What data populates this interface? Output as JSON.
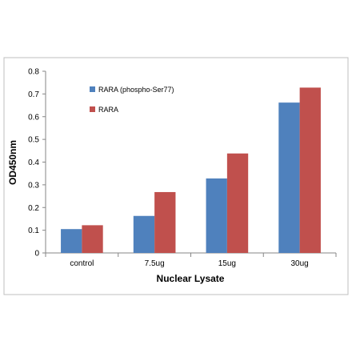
{
  "chart_data": {
    "type": "bar",
    "title": "",
    "xlabel": "Nuclear Lysate",
    "ylabel": "OD450nm",
    "ylim": [
      0,
      0.8
    ],
    "yticks": [
      0,
      0.1,
      0.2,
      0.3,
      0.4,
      0.5,
      0.6,
      0.7,
      0.8
    ],
    "ytick_labels": [
      "0",
      "0.1",
      "0.2",
      "0.3",
      "0.4",
      "0.5",
      "0.6",
      "0.7",
      "0.8"
    ],
    "grid": false,
    "legend_position": "top-left",
    "categories": [
      "control",
      "7.5ug",
      "15ug",
      "30ug"
    ],
    "series": [
      {
        "name": "RARA (phospho-Ser77)",
        "color": "#4F81BD",
        "values": [
          0.105,
          0.163,
          0.328,
          0.662
        ]
      },
      {
        "name": "RARA",
        "color": "#C0504D",
        "values": [
          0.122,
          0.268,
          0.438,
          0.728
        ]
      }
    ]
  }
}
